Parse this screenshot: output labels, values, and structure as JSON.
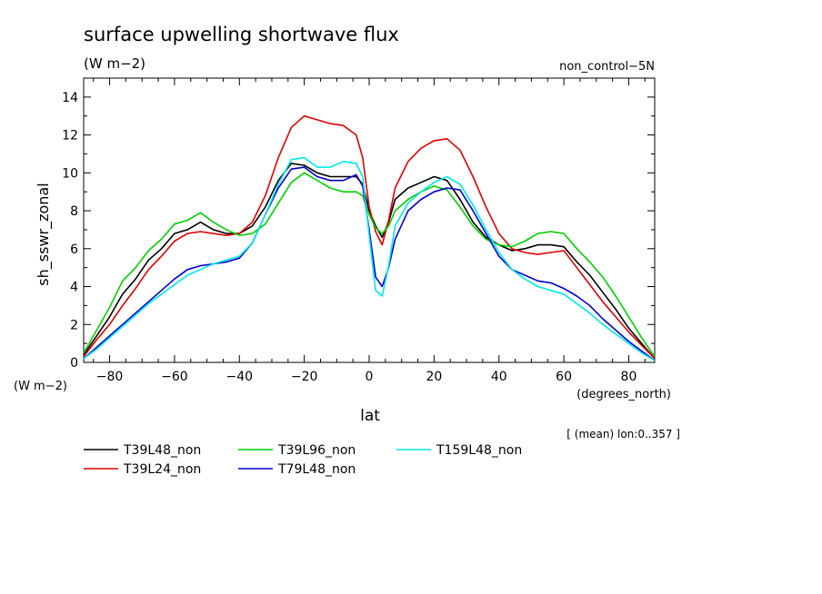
{
  "chart_data": {
    "type": "line",
    "title": "surface upwelling shortwave flux",
    "units": "(W m−2)",
    "subtitle_right": "non_control−5N",
    "ylabel": "sh_sswr_zonal",
    "y_units_label": "(W m−2)",
    "xlabel": "lat",
    "x_units_label": "(degrees_north)",
    "annotation": "[ (mean) lon:0..357 ]",
    "xlim": [
      -88,
      88
    ],
    "ylim": [
      0,
      15
    ],
    "x_ticks": [
      -80,
      -60,
      -40,
      -20,
      0,
      20,
      40,
      60,
      80
    ],
    "x_tick_labels": [
      "−80",
      "−60",
      "−40",
      "−20",
      "0",
      "20",
      "40",
      "60",
      "80"
    ],
    "y_ticks": [
      0,
      2,
      4,
      6,
      8,
      10,
      12,
      14
    ],
    "y_tick_labels": [
      "0",
      "2",
      "4",
      "6",
      "8",
      "10",
      "12",
      "14"
    ],
    "grid": false,
    "legend_position": "bottom",
    "x": [
      -88,
      -84,
      -80,
      -76,
      -72,
      -68,
      -64,
      -60,
      -56,
      -52,
      -48,
      -44,
      -40,
      -36,
      -32,
      -28,
      -24,
      -20,
      -16,
      -12,
      -8,
      -4,
      -2,
      0,
      2,
      4,
      6,
      8,
      12,
      16,
      20,
      24,
      28,
      32,
      36,
      40,
      44,
      48,
      52,
      56,
      60,
      64,
      68,
      72,
      76,
      80,
      84,
      88
    ],
    "series": [
      {
        "name": "T39L48_non",
        "color": "#000000",
        "values": [
          0.4,
          1.4,
          2.4,
          3.6,
          4.4,
          5.4,
          6.0,
          6.8,
          7.0,
          7.4,
          7.0,
          6.8,
          6.8,
          7.2,
          8.2,
          9.6,
          10.5,
          10.4,
          10.0,
          9.8,
          9.8,
          9.8,
          9.4,
          8.0,
          7.2,
          6.6,
          7.4,
          8.6,
          9.2,
          9.5,
          9.8,
          9.6,
          8.6,
          7.4,
          6.6,
          6.2,
          5.9,
          6.0,
          6.2,
          6.2,
          6.1,
          5.3,
          4.6,
          3.7,
          2.8,
          1.8,
          1.0,
          0.2
        ]
      },
      {
        "name": "T39L24_non",
        "color": "#e00000",
        "values": [
          0.3,
          1.2,
          2.0,
          3.0,
          3.9,
          4.9,
          5.6,
          6.4,
          6.8,
          6.9,
          6.8,
          6.7,
          6.8,
          7.4,
          8.8,
          10.8,
          12.4,
          13.0,
          12.8,
          12.6,
          12.5,
          12.0,
          10.8,
          8.2,
          6.9,
          6.2,
          7.5,
          9.2,
          10.6,
          11.3,
          11.7,
          11.8,
          11.2,
          9.8,
          8.2,
          6.8,
          6.0,
          5.8,
          5.7,
          5.8,
          5.9,
          5.0,
          4.1,
          3.2,
          2.4,
          1.6,
          0.9,
          0.2
        ]
      },
      {
        "name": "T39L96_non",
        "color": "#00d000",
        "values": [
          0.5,
          1.7,
          2.9,
          4.3,
          5.0,
          5.9,
          6.5,
          7.3,
          7.5,
          7.9,
          7.4,
          7.0,
          6.7,
          6.8,
          7.3,
          8.4,
          9.5,
          10.0,
          9.6,
          9.2,
          9.0,
          9.0,
          8.8,
          7.8,
          7.1,
          6.8,
          7.2,
          8.0,
          8.6,
          9.0,
          9.3,
          9.1,
          8.2,
          7.2,
          6.5,
          6.2,
          6.1,
          6.4,
          6.8,
          6.9,
          6.8,
          6.0,
          5.3,
          4.5,
          3.5,
          2.4,
          1.3,
          0.3
        ]
      },
      {
        "name": "T79L48_non",
        "color": "#0000d0",
        "values": [
          0.2,
          0.8,
          1.4,
          2.0,
          2.6,
          3.2,
          3.8,
          4.4,
          4.9,
          5.1,
          5.2,
          5.3,
          5.5,
          6.3,
          7.8,
          9.2,
          10.2,
          10.3,
          9.8,
          9.6,
          9.6,
          9.9,
          9.3,
          7.0,
          4.5,
          4.0,
          5.0,
          6.5,
          8.0,
          8.6,
          9.0,
          9.2,
          9.1,
          8.0,
          6.8,
          5.6,
          4.9,
          4.6,
          4.3,
          4.2,
          3.9,
          3.5,
          3.0,
          2.3,
          1.7,
          1.1,
          0.6,
          0.1
        ]
      },
      {
        "name": "T159L48_non",
        "color": "#00e8e8",
        "values": [
          0.2,
          0.7,
          1.3,
          1.9,
          2.5,
          3.1,
          3.6,
          4.1,
          4.6,
          4.9,
          5.2,
          5.4,
          5.6,
          6.3,
          7.8,
          9.4,
          10.7,
          10.8,
          10.3,
          10.3,
          10.6,
          10.5,
          9.8,
          6.7,
          3.8,
          3.5,
          5.1,
          7.2,
          8.4,
          9.0,
          9.5,
          9.8,
          9.4,
          8.3,
          7.0,
          5.8,
          4.9,
          4.4,
          4.0,
          3.8,
          3.6,
          3.1,
          2.6,
          2.0,
          1.5,
          1.0,
          0.5,
          0.1
        ]
      }
    ]
  }
}
